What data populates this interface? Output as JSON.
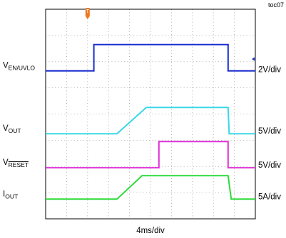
{
  "chart_data": {
    "type": "line",
    "tag": "toc07",
    "xlabel": "4ms/div",
    "x_divisions": 10,
    "y_divisions": 8,
    "series": [
      {
        "name": "V",
        "subscript": "EN/UVLO",
        "overline": false,
        "scale": "2V/div",
        "color": "#1a2fcf",
        "width": 2,
        "points": [
          [
            0,
            2.35
          ],
          [
            2.3,
            2.35
          ],
          [
            2.3,
            1.35
          ],
          [
            8.7,
            1.35
          ],
          [
            8.7,
            2.35
          ],
          [
            10,
            2.35
          ]
        ]
      },
      {
        "name": "V",
        "subscript": "OUT",
        "overline": false,
        "scale": "5V/div",
        "color": "#38d8e8",
        "width": 2,
        "points": [
          [
            0,
            4.75
          ],
          [
            3.4,
            4.75
          ],
          [
            4.8,
            3.75
          ],
          [
            8.7,
            3.75
          ],
          [
            8.75,
            4.75
          ],
          [
            10,
            4.75
          ]
        ]
      },
      {
        "name": "V",
        "subscript": "RESET",
        "overline": true,
        "scale": "5V/div",
        "color": "#e030d8",
        "width": 2,
        "points": [
          [
            0,
            6.05
          ],
          [
            5.4,
            6.05
          ],
          [
            5.4,
            5.05
          ],
          [
            8.7,
            5.05
          ],
          [
            8.7,
            6.05
          ],
          [
            10,
            6.05
          ]
        ]
      },
      {
        "name": "I",
        "subscript": "OUT",
        "overline": false,
        "scale": "5A/div",
        "color": "#2edb3a",
        "width": 2,
        "points": [
          [
            0,
            7.25
          ],
          [
            3.4,
            7.25
          ],
          [
            4.6,
            6.35
          ],
          [
            8.7,
            6.35
          ],
          [
            8.85,
            7.25
          ],
          [
            10,
            7.25
          ]
        ]
      }
    ]
  },
  "trigger_marker": {
    "label": "T",
    "color": "#f07820"
  }
}
